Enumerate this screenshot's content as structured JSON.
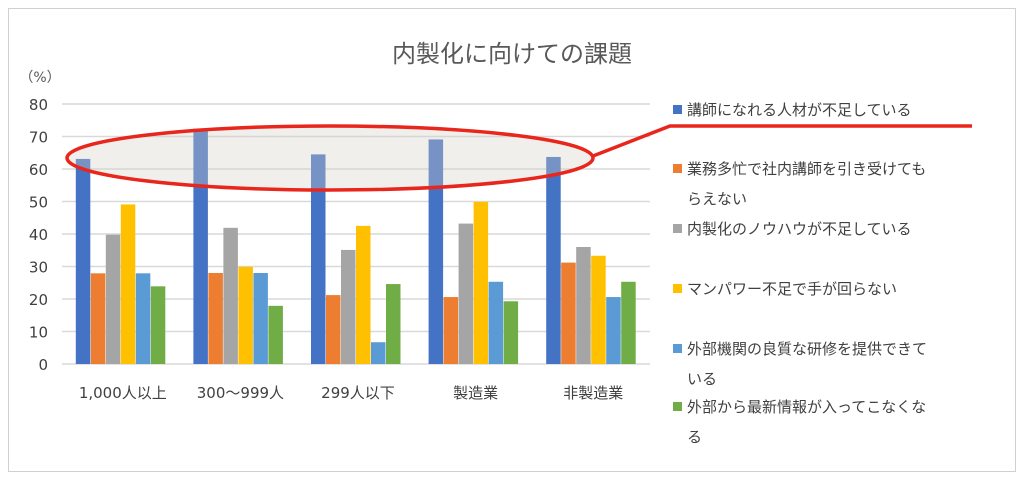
{
  "chart_data": {
    "type": "bar",
    "title": "内製化に向けての課題",
    "ylabel": "（%）",
    "ylim": [
      0,
      80
    ],
    "yticks": [
      0,
      10,
      20,
      30,
      40,
      50,
      60,
      70,
      80
    ],
    "grid": true,
    "legend_position": "right",
    "categories": [
      "1,000人以上",
      "300〜999人",
      "299人以下",
      "製造業",
      "非製造業"
    ],
    "series": [
      {
        "name": "講師になれる人材が不足している",
        "color": "#4472c4",
        "values": [
          63.1,
          72.4,
          64.5,
          69.1,
          63.7
        ]
      },
      {
        "name": "業務多忙で社内講師を引き受けてもらえない",
        "color": "#ed7d31",
        "values": [
          27.9,
          28.0,
          21.2,
          20.6,
          31.2
        ]
      },
      {
        "name": "内製化のノウハウが不足している",
        "color": "#a5a5a5",
        "values": [
          39.8,
          41.9,
          35.1,
          43.2,
          36.0
        ]
      },
      {
        "name": "マンパワー不足で手が回らない",
        "color": "#ffc000",
        "values": [
          49.1,
          29.9,
          42.5,
          49.9,
          33.3
        ]
      },
      {
        "name": "外部機関の良質な研修を提供できている",
        "color": "#5b9bd5",
        "values": [
          27.9,
          28.0,
          6.7,
          25.3,
          20.6
        ]
      },
      {
        "name": "外部から最新情報が入ってこなくなる",
        "color": "#70ad47",
        "values": [
          23.9,
          17.9,
          24.6,
          19.3,
          25.3
        ]
      }
    ],
    "legend_lines": [
      [
        "講師になれる人材が不足している"
      ],
      [
        "業務多忙で社内講師を引き受けても",
        "らえない"
      ],
      [
        "内製化のノウハウが不足している"
      ],
      [
        "マンパワー不足で手が回らない"
      ],
      [
        "外部機関の良質な研修を提供できて",
        "いる"
      ],
      [
        "外部から最新情報が入ってこなくな",
        "る"
      ]
    ],
    "annotation": {
      "type": "ellipse-callout",
      "color": "#e8261c",
      "highlights_series": "講師になれる人材が不足している"
    }
  }
}
